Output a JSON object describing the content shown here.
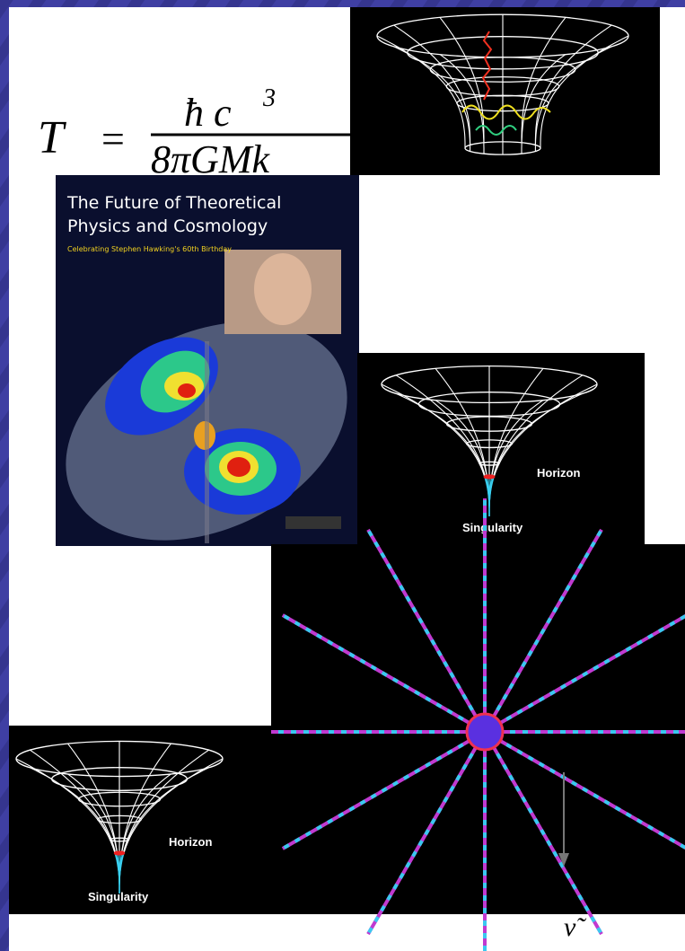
{
  "formula": {
    "lhs": "T",
    "equals": "=",
    "numerator": "ħ c",
    "exponent": "3",
    "denominator": "8πGMk"
  },
  "book": {
    "title_line_1": "The Future of Theoretical",
    "title_line_2": "Physics and Cosmology",
    "subtitle": "Celebrating Stephen Hawking's 60th Birthday"
  },
  "diagrams": [
    {
      "horizon": "Horizon",
      "singularity": "Singularity"
    },
    {
      "horizon": "Horizon",
      "singularity": "Singularity"
    }
  ],
  "symbol": "ν̃"
}
